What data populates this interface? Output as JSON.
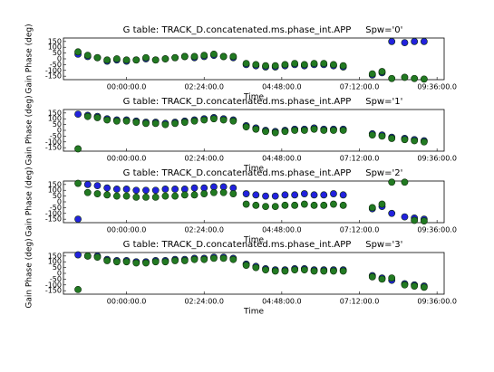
{
  "chart_data": [
    {
      "type": "scatter",
      "title": "G table: TRACK_D.concatenated.ms.phase_int.APP     Spw='0'",
      "xlabel": "Time",
      "ylabel": "Gain Phase (deg)",
      "x": [
        -1.5,
        -1.2,
        -0.9,
        -0.6,
        -0.3,
        0,
        0.3,
        0.6,
        0.9,
        1.2,
        1.5,
        1.8,
        2.1,
        2.4,
        2.7,
        3.0,
        3.3,
        3.7,
        4.0,
        4.3,
        4.6,
        4.9,
        5.2,
        5.5,
        5.8,
        6.1,
        6.4,
        6.7,
        7.6,
        7.9,
        8.2,
        8.6,
        8.9,
        9.2
      ],
      "series": [
        {
          "color": "#2222dd",
          "values": [
            40,
            20,
            10,
            -20,
            -10,
            -20,
            -10,
            0,
            -10,
            0,
            10,
            20,
            10,
            20,
            30,
            20,
            10,
            -50,
            -60,
            -70,
            -70,
            -60,
            -50,
            -60,
            -50,
            -50,
            -60,
            -70,
            -140,
            -120,
            150,
            140,
            150,
            150
          ]
        },
        {
          "color": "#227a22",
          "values": [
            60,
            30,
            10,
            -10,
            0,
            -10,
            -10,
            10,
            -10,
            0,
            10,
            20,
            20,
            30,
            40,
            20,
            20,
            -40,
            -50,
            -60,
            -60,
            -50,
            -40,
            -50,
            -40,
            -40,
            -50,
            -60,
            -130,
            -110,
            -170,
            -160,
            -170,
            -175
          ]
        }
      ],
      "xlim": [
        -1.95,
        9.82
      ],
      "ylim": [
        -180,
        180
      ],
      "xticks": [
        {
          "value": 0,
          "label": "00:00:00.0"
        },
        {
          "value": 2.4,
          "label": "02:24:00.0"
        },
        {
          "value": 4.8,
          "label": "04:48:00.0"
        },
        {
          "value": 7.2,
          "label": "07:12:00.0"
        },
        {
          "value": 9.6,
          "label": "09:36:00.0"
        }
      ],
      "yticks": [
        150,
        100,
        50,
        0,
        -50,
        -100,
        -150
      ]
    },
    {
      "type": "scatter",
      "title": "G table: TRACK_D.concatenated.ms.phase_int.APP     Spw='1'",
      "xlabel": "Time",
      "ylabel": "Gain Phase (deg)",
      "x": [
        -1.5,
        -1.2,
        -0.9,
        -0.6,
        -0.3,
        0,
        0.3,
        0.6,
        0.9,
        1.2,
        1.5,
        1.8,
        2.1,
        2.4,
        2.7,
        3.0,
        3.3,
        3.7,
        4.0,
        4.3,
        4.6,
        4.9,
        5.2,
        5.5,
        5.8,
        6.1,
        6.4,
        6.7,
        7.6,
        7.9,
        8.2,
        8.6,
        8.9,
        9.2
      ],
      "series": [
        {
          "color": "#2222dd",
          "values": [
            140,
            130,
            120,
            100,
            90,
            90,
            80,
            70,
            70,
            60,
            70,
            80,
            90,
            100,
            110,
            100,
            90,
            40,
            20,
            0,
            -10,
            0,
            10,
            10,
            20,
            10,
            10,
            10,
            -30,
            -40,
            -60,
            -70,
            -80,
            -90
          ]
        },
        {
          "color": "#227a22",
          "values": [
            -160,
            120,
            110,
            90,
            80,
            80,
            70,
            60,
            60,
            50,
            60,
            70,
            80,
            90,
            100,
            90,
            80,
            30,
            10,
            -10,
            -20,
            -10,
            0,
            0,
            10,
            0,
            0,
            0,
            -40,
            -50,
            -70,
            -80,
            -90,
            -100
          ]
        }
      ],
      "xlim": [
        -1.95,
        9.82
      ],
      "ylim": [
        -180,
        180
      ],
      "xticks": [
        {
          "value": 0,
          "label": "00:00:00.0"
        },
        {
          "value": 2.4,
          "label": "02:24:00.0"
        },
        {
          "value": 4.8,
          "label": "04:48:00.0"
        },
        {
          "value": 7.2,
          "label": "07:12:00.0"
        },
        {
          "value": 9.6,
          "label": "09:36:00.0"
        }
      ],
      "yticks": [
        150,
        100,
        50,
        0,
        -50,
        -100,
        -150
      ]
    },
    {
      "type": "scatter",
      "title": "G table: TRACK_D.concatenated.ms.phase_int.APP     Spw='2'",
      "xlabel": "Time",
      "ylabel": "Gain Phase (deg)",
      "x": [
        -1.5,
        -1.2,
        -0.9,
        -0.6,
        -0.3,
        0,
        0.3,
        0.6,
        0.9,
        1.2,
        1.5,
        1.8,
        2.1,
        2.4,
        2.7,
        3.0,
        3.3,
        3.7,
        4.0,
        4.3,
        4.6,
        4.9,
        5.2,
        5.5,
        5.8,
        6.1,
        6.4,
        6.7,
        7.6,
        7.9,
        8.2,
        8.6,
        8.9,
        9.2
      ],
      "series": [
        {
          "color": "#2222dd",
          "values": [
            -150,
            150,
            140,
            120,
            110,
            110,
            100,
            100,
            100,
            110,
            110,
            110,
            120,
            120,
            130,
            130,
            120,
            70,
            60,
            50,
            50,
            60,
            60,
            70,
            60,
            60,
            70,
            60,
            -60,
            -40,
            -100,
            -130,
            -140,
            -150
          ]
        },
        {
          "color": "#227a22",
          "values": [
            160,
            80,
            70,
            60,
            50,
            50,
            40,
            40,
            40,
            50,
            50,
            60,
            60,
            70,
            80,
            80,
            70,
            -20,
            -30,
            -40,
            -40,
            -30,
            -30,
            -20,
            -30,
            -30,
            -20,
            -30,
            -50,
            -20,
            170,
            170,
            -160,
            -165
          ]
        }
      ],
      "xlim": [
        -1.95,
        9.82
      ],
      "ylim": [
        -180,
        180
      ],
      "xticks": [
        {
          "value": 0,
          "label": "00:00:00.0"
        },
        {
          "value": 2.4,
          "label": "02:24:00.0"
        },
        {
          "value": 4.8,
          "label": "04:48:00.0"
        },
        {
          "value": 7.2,
          "label": "07:12:00.0"
        },
        {
          "value": 9.6,
          "label": "09:36:00.0"
        }
      ],
      "yticks": [
        150,
        100,
        50,
        0,
        -50,
        -100,
        -150
      ]
    },
    {
      "type": "scatter",
      "title": "G table: TRACK_D.concatenated.ms.phase_int.APP     Spw='3'",
      "xlabel": "Time",
      "ylabel": "Gain Phase (deg)",
      "x": [
        -1.5,
        -1.2,
        -0.9,
        -0.6,
        -0.3,
        0,
        0.3,
        0.6,
        0.9,
        1.2,
        1.5,
        1.8,
        2.1,
        2.4,
        2.7,
        3.0,
        3.3,
        3.7,
        4.0,
        4.3,
        4.6,
        4.9,
        5.2,
        5.5,
        5.8,
        6.1,
        6.4,
        6.7,
        7.6,
        7.9,
        8.2,
        8.6,
        8.9,
        9.2
      ],
      "series": [
        {
          "color": "#2222dd",
          "values": [
            160,
            150,
            150,
            120,
            110,
            110,
            100,
            100,
            110,
            110,
            120,
            120,
            130,
            130,
            140,
            140,
            130,
            80,
            60,
            40,
            30,
            30,
            40,
            40,
            30,
            30,
            30,
            30,
            -20,
            -40,
            -60,
            -90,
            -100,
            -110
          ]
        },
        {
          "color": "#227a22",
          "values": [
            -140,
            150,
            140,
            110,
            100,
            100,
            90,
            90,
            100,
            100,
            110,
            110,
            120,
            120,
            130,
            130,
            120,
            70,
            50,
            30,
            20,
            20,
            30,
            30,
            20,
            20,
            20,
            20,
            -30,
            -50,
            -40,
            -100,
            -110,
            -120
          ]
        }
      ],
      "xlim": [
        -1.95,
        9.82
      ],
      "ylim": [
        -180,
        180
      ],
      "xticks": [
        {
          "value": 0,
          "label": "00:00:00.0"
        },
        {
          "value": 2.4,
          "label": "02:24:00.0"
        },
        {
          "value": 4.8,
          "label": "04:48:00.0"
        },
        {
          "value": 7.2,
          "label": "07:12:00.0"
        },
        {
          "value": 9.6,
          "label": "09:36:00.0"
        }
      ],
      "yticks": [
        150,
        100,
        50,
        0,
        -50,
        -100,
        -150
      ]
    }
  ]
}
